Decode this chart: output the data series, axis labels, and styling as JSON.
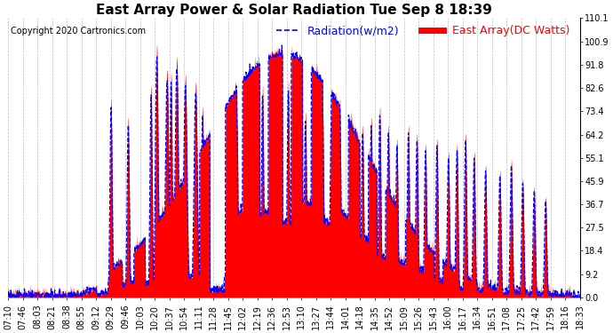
{
  "title": "East Array Power & Solar Radiation Tue Sep 8 18:39",
  "copyright": "Copyright 2020 Cartronics.com",
  "legend_radiation": "Radiation(w/m2)",
  "legend_array": "East Array(DC Watts)",
  "radiation_color": "#0000ff",
  "array_color": "#ff0000",
  "background_color": "#ffffff",
  "grid_color": "#aaaaaa",
  "y_min": 0.0,
  "y_max": 110.1,
  "y_ticks": [
    0.0,
    9.2,
    18.4,
    27.5,
    36.7,
    45.9,
    55.1,
    64.2,
    73.4,
    82.6,
    91.8,
    100.9,
    110.1
  ],
  "x_labels": [
    "07:10",
    "07:46",
    "08:03",
    "08:21",
    "08:38",
    "08:55",
    "09:12",
    "09:29",
    "09:46",
    "10:03",
    "10:20",
    "10:37",
    "10:54",
    "11:11",
    "11:28",
    "11:45",
    "12:02",
    "12:19",
    "12:36",
    "12:53",
    "13:10",
    "13:27",
    "13:44",
    "14:01",
    "14:18",
    "14:35",
    "14:52",
    "15:09",
    "15:26",
    "15:43",
    "16:00",
    "16:17",
    "16:34",
    "16:51",
    "17:08",
    "17:25",
    "17:42",
    "17:59",
    "18:16",
    "18:33"
  ],
  "title_fontsize": 11,
  "tick_fontsize": 7,
  "legend_fontsize": 9,
  "copyright_fontsize": 7
}
